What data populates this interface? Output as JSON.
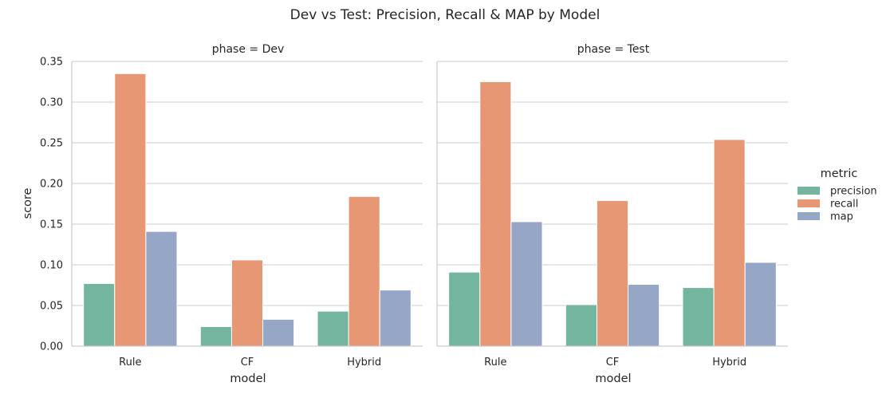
{
  "chart_data": {
    "type": "bar",
    "title": "Dev vs Test: Precision, Recall & MAP by Model",
    "xlabel": "model",
    "ylabel": "score",
    "ylim": [
      0,
      0.35
    ],
    "yticks": [
      "0.00",
      "0.05",
      "0.10",
      "0.15",
      "0.20",
      "0.25",
      "0.30",
      "0.35"
    ],
    "ytick_values": [
      0,
      0.05,
      0.1,
      0.15,
      0.2,
      0.25,
      0.3,
      0.35
    ],
    "categories": [
      "Rule",
      "CF",
      "Hybrid"
    ],
    "grid": true,
    "legend": {
      "title": "metric",
      "placement": "right",
      "entries": [
        "precision",
        "recall",
        "map"
      ]
    },
    "colors": {
      "precision": "#73b59e",
      "recall": "#e89774",
      "map": "#96a6c7"
    },
    "panels": [
      {
        "title": "phase = Dev",
        "series": [
          {
            "name": "precision",
            "values": [
              0.077,
              0.024,
              0.043
            ]
          },
          {
            "name": "recall",
            "values": [
              0.335,
              0.106,
              0.184
            ]
          },
          {
            "name": "map",
            "values": [
              0.141,
              0.033,
              0.069
            ]
          }
        ]
      },
      {
        "title": "phase = Test",
        "series": [
          {
            "name": "precision",
            "values": [
              0.091,
              0.051,
              0.072
            ]
          },
          {
            "name": "recall",
            "values": [
              0.325,
              0.179,
              0.254
            ]
          },
          {
            "name": "map",
            "values": [
              0.153,
              0.076,
              0.103
            ]
          }
        ]
      }
    ]
  }
}
